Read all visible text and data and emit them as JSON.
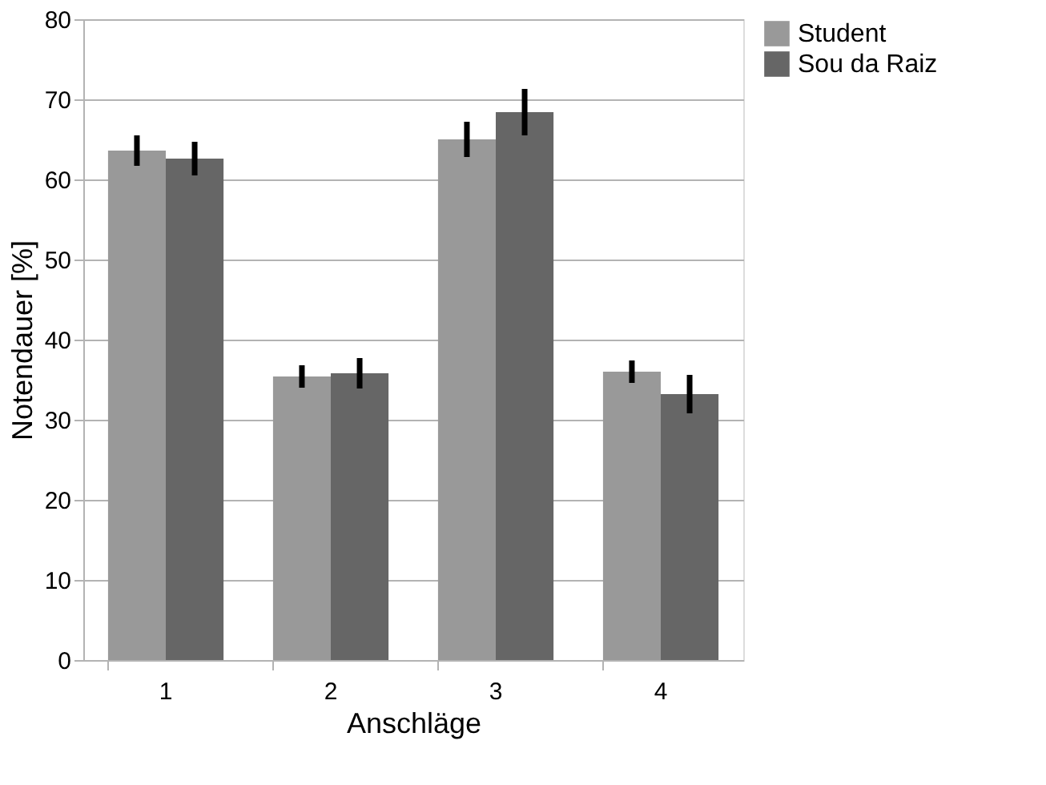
{
  "chart_data": {
    "type": "bar",
    "xlabel": "Anschläge",
    "ylabel": "Notendauer [%]",
    "categories": [
      "1",
      "2",
      "3",
      "4"
    ],
    "series": [
      {
        "name": "Student",
        "color": "#999999",
        "values": [
          63.6,
          35.4,
          65.0,
          36.0
        ],
        "errors": [
          1.9,
          1.4,
          2.2,
          1.4
        ]
      },
      {
        "name": "Sou da Raiz",
        "color": "#666666",
        "values": [
          62.6,
          35.8,
          68.4,
          33.2
        ],
        "errors": [
          2.1,
          1.9,
          2.9,
          2.4
        ]
      }
    ],
    "ylim": [
      0,
      80
    ],
    "yticks": [
      0,
      10,
      20,
      30,
      40,
      50,
      60,
      70,
      80
    ],
    "grid": "y",
    "legend": "right"
  }
}
